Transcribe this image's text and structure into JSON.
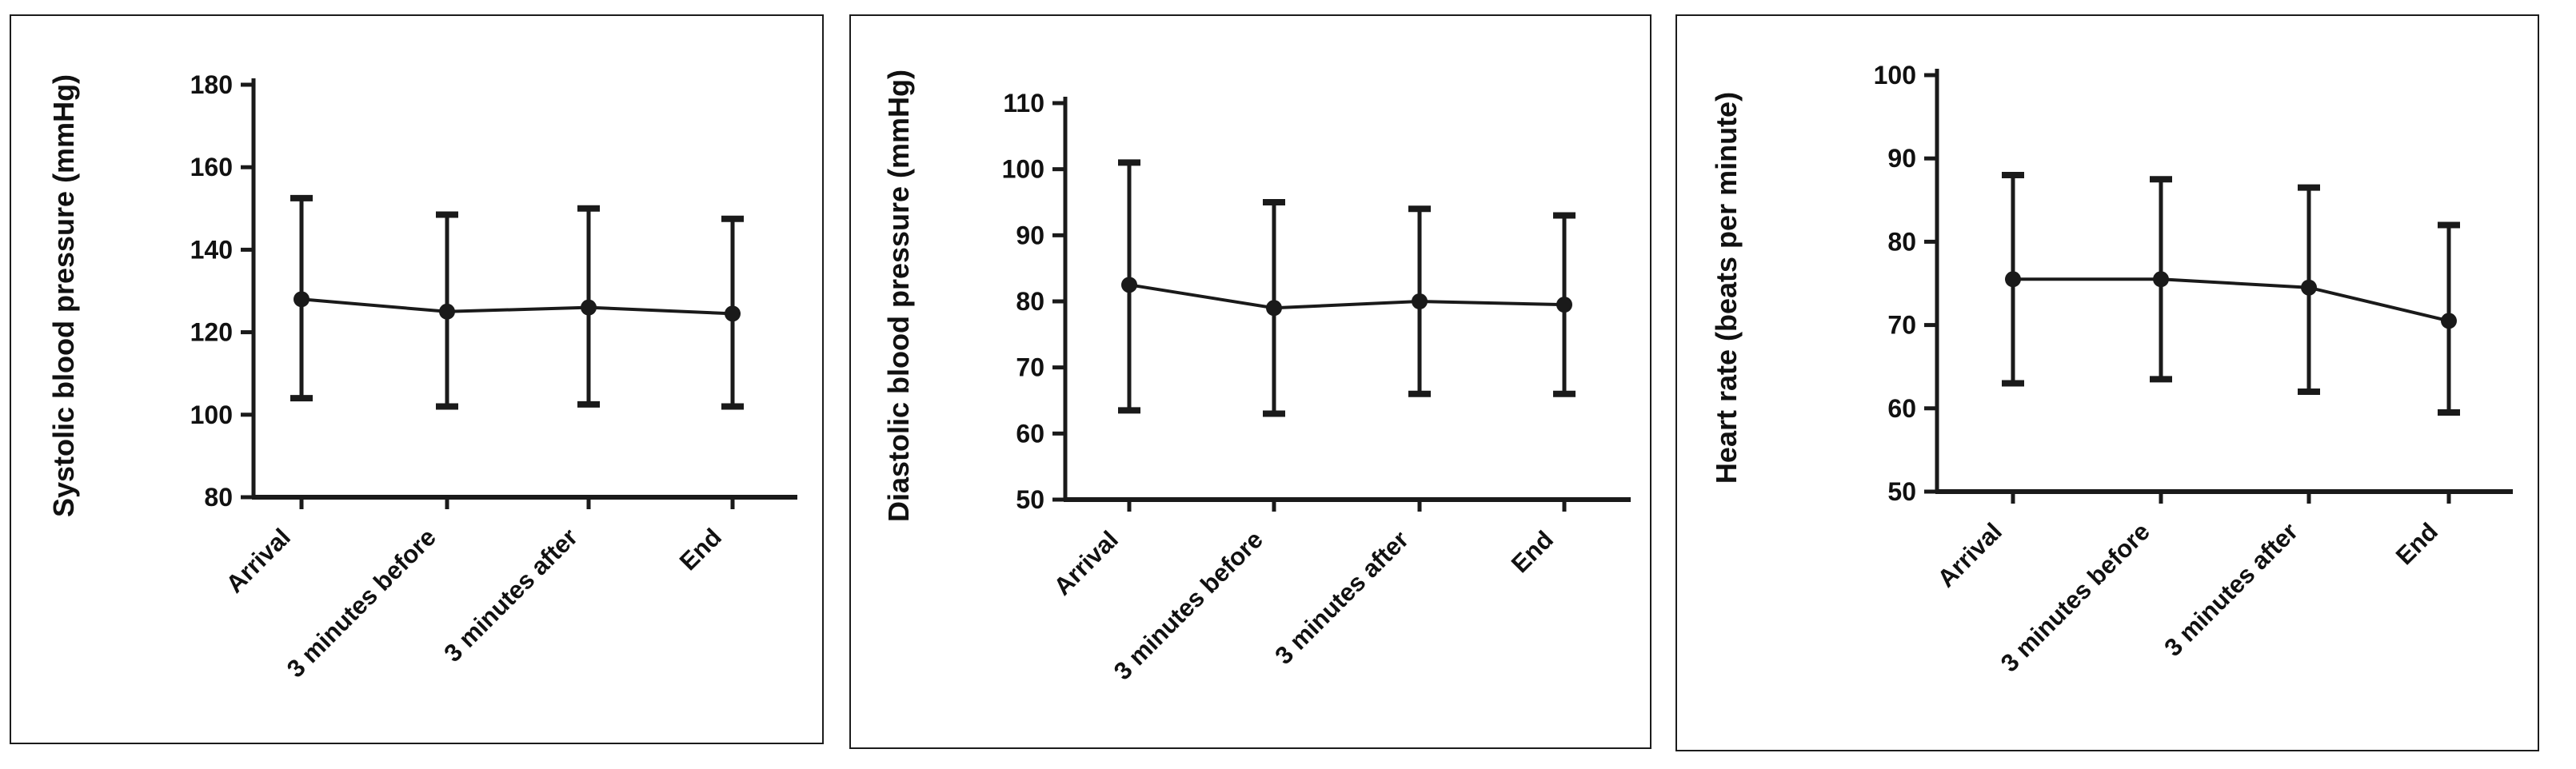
{
  "figure": {
    "description": "Three-panel line figure with mean points and SD error bars across four time points",
    "panel_count": 3
  },
  "chart_data": [
    {
      "type": "line",
      "title": "",
      "ylabel": "Systolic blood pressure (mmHg)",
      "xlabel": "",
      "categories": [
        "Arrival",
        "3 minutes before",
        "3 minutes after",
        "End"
      ],
      "series": [
        {
          "name": "mean systolic blood pressure",
          "values": [
            128,
            125,
            126,
            124.5
          ]
        }
      ],
      "error_bars": {
        "upper": [
          152.5,
          148.5,
          150,
          147.5
        ],
        "lower": [
          104,
          102,
          102.5,
          102
        ]
      },
      "ylim": [
        80,
        180
      ],
      "yticks": [
        80,
        100,
        120,
        140,
        160,
        180
      ],
      "grid": false,
      "legend_position": "none",
      "marker": "circle",
      "line_color": "#1a1a1a"
    },
    {
      "type": "line",
      "title": "",
      "ylabel": "Diastolic blood pressure (mmHg)",
      "xlabel": "",
      "categories": [
        "Arrival",
        "3 minutes before",
        "3 minutes after",
        "End"
      ],
      "series": [
        {
          "name": "mean diastolic blood pressure",
          "values": [
            82.5,
            79,
            80,
            79.5
          ]
        }
      ],
      "error_bars": {
        "upper": [
          101,
          95,
          94,
          93
        ],
        "lower": [
          63.5,
          63,
          66,
          66
        ]
      },
      "ylim": [
        50,
        110
      ],
      "yticks": [
        50,
        60,
        70,
        80,
        90,
        100,
        110
      ],
      "grid": false,
      "legend_position": "none",
      "marker": "circle",
      "line_color": "#1a1a1a"
    },
    {
      "type": "line",
      "title": "",
      "ylabel": "Heart rate (beats per minute)",
      "xlabel": "",
      "categories": [
        "Arrival",
        "3 minutes before",
        "3 minutes after",
        "End"
      ],
      "series": [
        {
          "name": "mean heart rate",
          "values": [
            75.5,
            75.5,
            74.5,
            70.5
          ]
        }
      ],
      "error_bars": {
        "upper": [
          88,
          87.5,
          86.5,
          82
        ],
        "lower": [
          63,
          63.5,
          62,
          59.5
        ]
      },
      "ylim": [
        50,
        100
      ],
      "yticks": [
        50,
        60,
        70,
        80,
        90,
        100
      ],
      "grid": false,
      "legend_position": "none",
      "marker": "circle",
      "line_color": "#1a1a1a"
    }
  ],
  "geometry": [
    {
      "axisX": 303,
      "xEnd": 983,
      "yTop": 86,
      "yBottom": 602,
      "pointXs": [
        363,
        545,
        722,
        902
      ],
      "ylabelX": 78,
      "ylabelCY": 350
    },
    {
      "axisX": 268,
      "xEnd": 975,
      "yTop": 109,
      "yBottom": 605,
      "pointXs": [
        348,
        529,
        711,
        892
      ],
      "ylabelX": 72,
      "ylabelCY": 350
    },
    {
      "axisX": 325,
      "xEnd": 1045,
      "yTop": 74,
      "yBottom": 595,
      "pointXs": [
        420,
        605,
        790,
        965
      ],
      "ylabelX": 74,
      "ylabelCY": 340
    }
  ]
}
